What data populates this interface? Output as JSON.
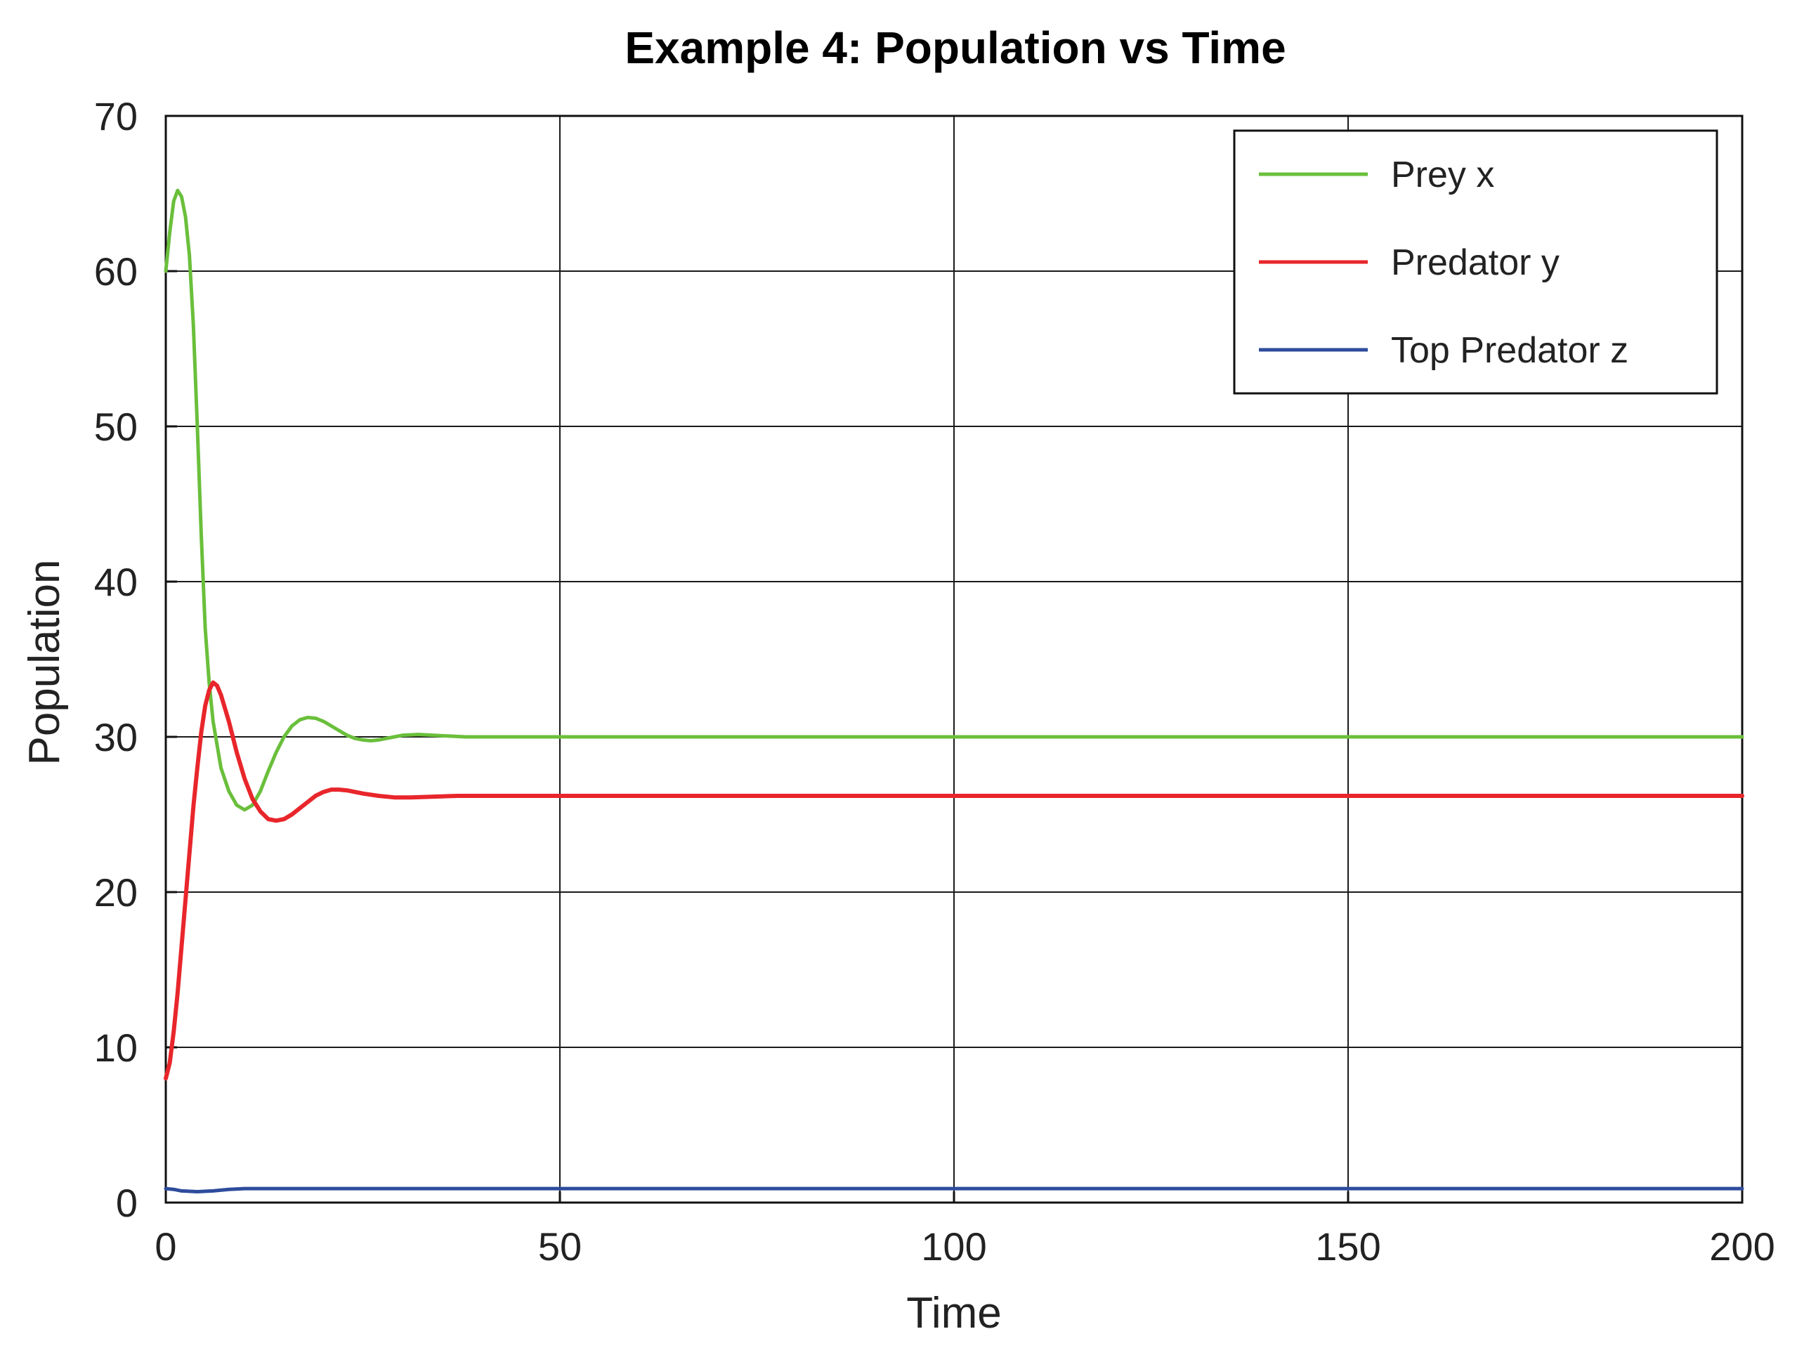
{
  "chart_data": {
    "type": "line",
    "title": "Example 4: Population vs Time",
    "xlabel": "Time",
    "ylabel": "Population",
    "xlim": [
      0,
      200
    ],
    "ylim": [
      0,
      70
    ],
    "xticks": [
      0,
      50,
      100,
      150,
      200
    ],
    "yticks": [
      0,
      10,
      20,
      30,
      40,
      50,
      60,
      70
    ],
    "grid": true,
    "legend_position": "top-right",
    "series": [
      {
        "name": "Prey x",
        "color": "#6abf3b",
        "points": [
          [
            0,
            60
          ],
          [
            0.5,
            62.5
          ],
          [
            1,
            64.5
          ],
          [
            1.5,
            65.2
          ],
          [
            2,
            64.8
          ],
          [
            2.5,
            63.5
          ],
          [
            3,
            61
          ],
          [
            3.5,
            56.5
          ],
          [
            4,
            50
          ],
          [
            4.5,
            43
          ],
          [
            5,
            37
          ],
          [
            5.5,
            33.5
          ],
          [
            6,
            31
          ],
          [
            7,
            28
          ],
          [
            8,
            26.5
          ],
          [
            9,
            25.6
          ],
          [
            10,
            25.3
          ],
          [
            11,
            25.6
          ],
          [
            12,
            26.5
          ],
          [
            13,
            27.8
          ],
          [
            14,
            29
          ],
          [
            15,
            30
          ],
          [
            16,
            30.7
          ],
          [
            17,
            31.1
          ],
          [
            18,
            31.25
          ],
          [
            19,
            31.2
          ],
          [
            20,
            31
          ],
          [
            21,
            30.7
          ],
          [
            22,
            30.4
          ],
          [
            23,
            30.1
          ],
          [
            24,
            29.9
          ],
          [
            25,
            29.8
          ],
          [
            26,
            29.75
          ],
          [
            27,
            29.8
          ],
          [
            28,
            29.9
          ],
          [
            29,
            30
          ],
          [
            30,
            30.1
          ],
          [
            32,
            30.15
          ],
          [
            34,
            30.1
          ],
          [
            36,
            30.05
          ],
          [
            38,
            30
          ],
          [
            40,
            30
          ],
          [
            50,
            30
          ],
          [
            100,
            30
          ],
          [
            150,
            30
          ],
          [
            200,
            30
          ]
        ]
      },
      {
        "name": "Predator y",
        "color": "#e8262b",
        "points": [
          [
            0,
            8
          ],
          [
            0.5,
            9
          ],
          [
            1,
            11
          ],
          [
            1.5,
            13.5
          ],
          [
            2,
            16.5
          ],
          [
            2.5,
            19.5
          ],
          [
            3,
            22.5
          ],
          [
            3.5,
            25.5
          ],
          [
            4,
            28
          ],
          [
            4.5,
            30.3
          ],
          [
            5,
            32
          ],
          [
            5.5,
            33
          ],
          [
            6,
            33.5
          ],
          [
            6.5,
            33.3
          ],
          [
            7,
            32.7
          ],
          [
            8,
            31
          ],
          [
            9,
            29
          ],
          [
            10,
            27.3
          ],
          [
            11,
            26
          ],
          [
            12,
            25.2
          ],
          [
            13,
            24.7
          ],
          [
            14,
            24.6
          ],
          [
            15,
            24.7
          ],
          [
            16,
            25
          ],
          [
            17,
            25.4
          ],
          [
            18,
            25.8
          ],
          [
            19,
            26.2
          ],
          [
            20,
            26.45
          ],
          [
            21,
            26.6
          ],
          [
            22,
            26.6
          ],
          [
            23,
            26.55
          ],
          [
            24,
            26.45
          ],
          [
            25,
            26.35
          ],
          [
            27,
            26.2
          ],
          [
            29,
            26.1
          ],
          [
            31,
            26.1
          ],
          [
            34,
            26.15
          ],
          [
            37,
            26.2
          ],
          [
            40,
            26.2
          ],
          [
            45,
            26.2
          ],
          [
            50,
            26.2
          ],
          [
            100,
            26.2
          ],
          [
            150,
            26.2
          ],
          [
            200,
            26.2
          ]
        ]
      },
      {
        "name": "Top Predator z",
        "color": "#2e4c9c",
        "points": [
          [
            0,
            0.9
          ],
          [
            1,
            0.85
          ],
          [
            2,
            0.75
          ],
          [
            4,
            0.7
          ],
          [
            6,
            0.75
          ],
          [
            8,
            0.85
          ],
          [
            10,
            0.9
          ],
          [
            20,
            0.9
          ],
          [
            50,
            0.9
          ],
          [
            100,
            0.9
          ],
          [
            150,
            0.9
          ],
          [
            200,
            0.9
          ]
        ]
      }
    ]
  }
}
